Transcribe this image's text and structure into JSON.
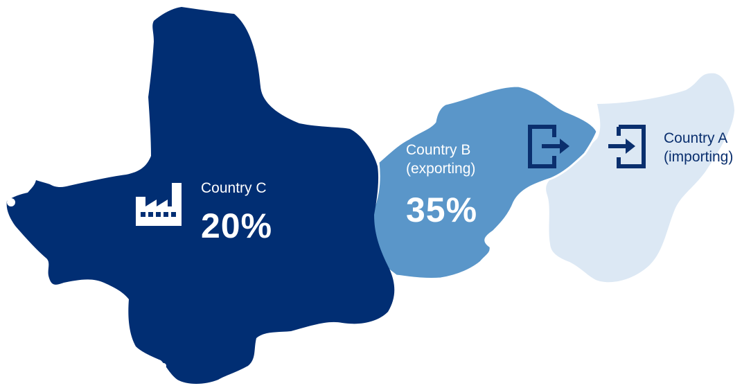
{
  "colors": {
    "country_c": "#012e73",
    "country_b": "#5a96c9",
    "country_a": "#dce8f4",
    "icon_dark": "#0a2f6e",
    "label_light": "#ffffff"
  },
  "regions": [
    {
      "id": "country_c",
      "name": "Country C",
      "value": "20%",
      "icon": "factory-icon"
    },
    {
      "id": "country_b",
      "name": "Country B",
      "role": "(exporting)",
      "value": "35%",
      "icon": "export-icon"
    },
    {
      "id": "country_a",
      "name": "Country A",
      "role": "(importing)",
      "icon": "import-icon"
    }
  ]
}
